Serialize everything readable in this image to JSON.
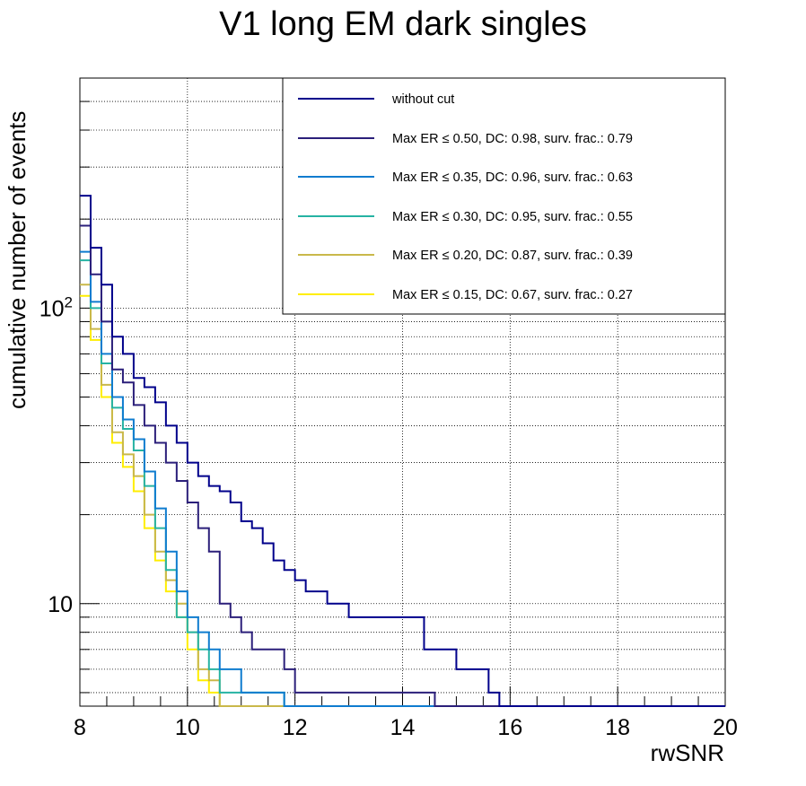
{
  "chart_data": {
    "type": "line",
    "step": true,
    "title": "V1 long EM dark singles",
    "xlabel": "rwSNR",
    "ylabel": "cumulative number of events",
    "xlim": [
      8,
      20
    ],
    "ylim": [
      4.5,
      600
    ],
    "yscale": "log",
    "grid": true,
    "legend_position": "top-right",
    "x_ticks": [
      "8",
      "10",
      "12",
      "14",
      "16",
      "18",
      "20"
    ],
    "y_ticks": [
      {
        "value": 10,
        "label": "10"
      },
      {
        "value": 100,
        "label": "10",
        "exponent": "2"
      }
    ],
    "bin_width": 0.2,
    "bin_start": 8.0,
    "series": [
      {
        "name": "without cut",
        "color": "#00008b",
        "values": [
          240,
          160,
          120,
          80,
          70,
          58,
          54,
          48,
          40,
          35,
          30,
          27,
          25,
          24,
          22,
          19,
          18,
          16,
          14,
          13,
          12,
          11,
          11,
          10,
          10,
          9,
          9,
          9,
          9,
          9,
          9,
          9,
          7,
          7,
          7,
          6,
          6,
          6,
          5,
          4.5
        ]
      },
      {
        "name": "Max ER ≤ 0.50, DC: 0.98, surv. frac.: 0.79",
        "color": "#2b1f7a",
        "values": [
          190,
          130,
          90,
          62,
          56,
          47,
          40,
          35,
          30,
          26,
          22,
          18,
          15,
          10,
          9,
          8,
          7,
          7,
          7,
          6,
          5,
          5,
          5,
          5,
          5,
          5,
          5,
          5,
          5,
          5,
          5,
          5,
          5,
          4.5
        ]
      },
      {
        "name": "Max ER ≤ 0.35, DC: 0.96, surv. frac.: 0.63",
        "color": "#0f7ccf",
        "values": [
          155,
          105,
          70,
          50,
          42,
          36,
          28,
          21,
          15,
          11,
          9,
          8,
          7,
          6,
          6,
          5,
          5,
          5,
          5,
          4.5
        ]
      },
      {
        "name": "Max ER ≤ 0.30, DC: 0.95, surv. frac.: 0.55",
        "color": "#26b3a3",
        "values": [
          145,
          100,
          65,
          46,
          39,
          33,
          25,
          18,
          13,
          9,
          8,
          7,
          6,
          5,
          5,
          5,
          5,
          5,
          5,
          4.5
        ]
      },
      {
        "name": "Max ER ≤ 0.20, DC: 0.87, surv. frac.: 0.39",
        "color": "#c9b84a",
        "values": [
          120,
          85,
          55,
          38,
          32,
          27,
          20,
          15,
          12,
          10,
          8,
          6,
          5.5,
          4.5
        ]
      },
      {
        "name": "Max ER ≤ 0.15, DC: 0.67, surv. frac.: 0.27",
        "color": "#ffee00",
        "values": [
          110,
          78,
          50,
          35,
          29,
          24,
          18,
          14,
          11,
          9,
          7,
          5.5,
          5,
          4.5
        ]
      }
    ]
  }
}
